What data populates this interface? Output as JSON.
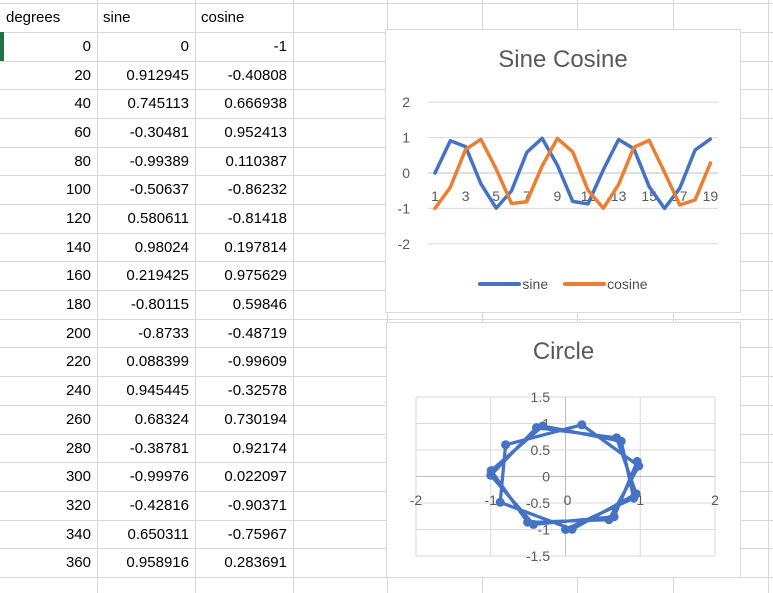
{
  "sheet": {
    "headers": [
      "degrees",
      "sine",
      "cosine"
    ],
    "rows": [
      [
        "0",
        "0",
        "-1"
      ],
      [
        "20",
        "0.912945",
        "-0.40808"
      ],
      [
        "40",
        "0.745113",
        "0.666938"
      ],
      [
        "60",
        "-0.30481",
        "0.952413"
      ],
      [
        "80",
        "-0.99389",
        "0.110387"
      ],
      [
        "100",
        "-0.50637",
        "-0.86232"
      ],
      [
        "120",
        "0.580611",
        "-0.81418"
      ],
      [
        "140",
        "0.98024",
        "0.197814"
      ],
      [
        "160",
        "0.219425",
        "0.975629"
      ],
      [
        "180",
        "-0.80115",
        "0.59846"
      ],
      [
        "200",
        "-0.8733",
        "-0.48719"
      ],
      [
        "220",
        "0.088399",
        "-0.99609"
      ],
      [
        "240",
        "0.945445",
        "-0.32578"
      ],
      [
        "260",
        "0.68324",
        "0.730194"
      ],
      [
        "280",
        "-0.38781",
        "0.92174"
      ],
      [
        "300",
        "-0.99976",
        "0.022097"
      ],
      [
        "320",
        "-0.42816",
        "-0.90371"
      ],
      [
        "340",
        "0.650311",
        "-0.75967"
      ],
      [
        "360",
        "0.958916",
        "0.283691"
      ]
    ],
    "selection_color": "#217346"
  },
  "chart_data": [
    {
      "type": "line",
      "title": "Sine Cosine",
      "categories": [
        1,
        2,
        3,
        4,
        5,
        6,
        7,
        8,
        9,
        10,
        11,
        12,
        13,
        14,
        15,
        16,
        17,
        18,
        19
      ],
      "x_tick_labels": [
        "1",
        "3",
        "5",
        "7",
        "9",
        "11",
        "13",
        "15",
        "17",
        "19"
      ],
      "yticks": [
        "2",
        "1",
        "0",
        "-1",
        "-2"
      ],
      "ylim": [
        -2,
        2
      ],
      "grid": "horizontal",
      "legend_position": "bottom",
      "series": [
        {
          "name": "sine",
          "color": "#4472C4",
          "values": [
            0,
            0.912945,
            0.745113,
            -0.30481,
            -0.99389,
            -0.50637,
            0.580611,
            0.98024,
            0.219425,
            -0.80115,
            -0.8733,
            0.088399,
            0.945445,
            0.68324,
            -0.38781,
            -0.99976,
            -0.42816,
            0.650311,
            0.958916
          ]
        },
        {
          "name": "cosine",
          "color": "#ED7D31",
          "values": [
            -1,
            -0.40808,
            0.666938,
            0.952413,
            0.110387,
            -0.86232,
            -0.81418,
            0.197814,
            0.975629,
            0.59846,
            -0.48719,
            -0.99609,
            -0.32578,
            0.730194,
            0.92174,
            0.022097,
            -0.90371,
            -0.75967,
            0.283691
          ]
        }
      ]
    },
    {
      "type": "scatter",
      "title": "Circle",
      "line_color": "#4472C4",
      "marker": "circle",
      "grid": "both",
      "xlim": [
        -2,
        2
      ],
      "ylim": [
        -1.5,
        1.5
      ],
      "xticks": [
        "-2",
        "-1",
        "0",
        "1",
        "2"
      ],
      "yticks": [
        "1.5",
        "1",
        "0.5",
        "0",
        "-0.5",
        "-1",
        "-1.5"
      ],
      "x": [
        0,
        0.912945,
        0.745113,
        -0.30481,
        -0.99389,
        -0.50637,
        0.580611,
        0.98024,
        0.219425,
        -0.80115,
        -0.8733,
        0.088399,
        0.945445,
        0.68324,
        -0.38781,
        -0.99976,
        -0.42816,
        0.650311,
        0.958916
      ],
      "y": [
        -1,
        -0.40808,
        0.666938,
        0.952413,
        0.110387,
        -0.86232,
        -0.81418,
        0.197814,
        0.975629,
        0.59846,
        -0.48719,
        -0.99609,
        -0.32578,
        0.730194,
        0.92174,
        0.022097,
        -0.90371,
        -0.75967,
        0.283691
      ]
    }
  ]
}
